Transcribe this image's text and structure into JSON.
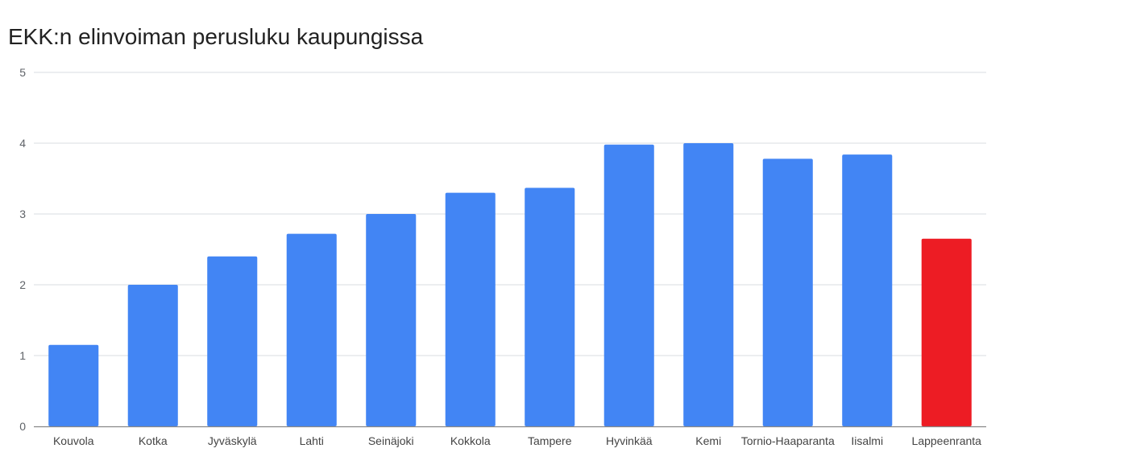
{
  "chart_data": {
    "type": "bar",
    "title": "EKK:n elinvoiman perusluku kaupungissa",
    "xlabel": "",
    "ylabel": "",
    "ylim": [
      0,
      5
    ],
    "yticks": [
      "0",
      "1",
      "2",
      "3",
      "4",
      "5"
    ],
    "grid": true,
    "legend": "none",
    "categories": [
      "Kouvola",
      "Kotka",
      "Jyväskylä",
      "Lahti",
      "Seinäjoki",
      "Kokkola",
      "Tampere",
      "Hyvinkää",
      "Kemi",
      "Tornio-Haaparanta",
      "Iisalmi",
      "Lappeenranta"
    ],
    "values": [
      1.15,
      2.0,
      2.4,
      2.72,
      3.0,
      3.3,
      3.37,
      3.98,
      4.0,
      3.78,
      3.84,
      2.65
    ],
    "bar_colors": [
      "#4285f4",
      "#4285f4",
      "#4285f4",
      "#4285f4",
      "#4285f4",
      "#4285f4",
      "#4285f4",
      "#4285f4",
      "#4285f4",
      "#4285f4",
      "#4285f4",
      "#ed1c24"
    ]
  },
  "colors": {
    "bar": "#4285f4",
    "highlight": "#ed1c24",
    "grid": "#dadce0",
    "axis": "#888888"
  }
}
